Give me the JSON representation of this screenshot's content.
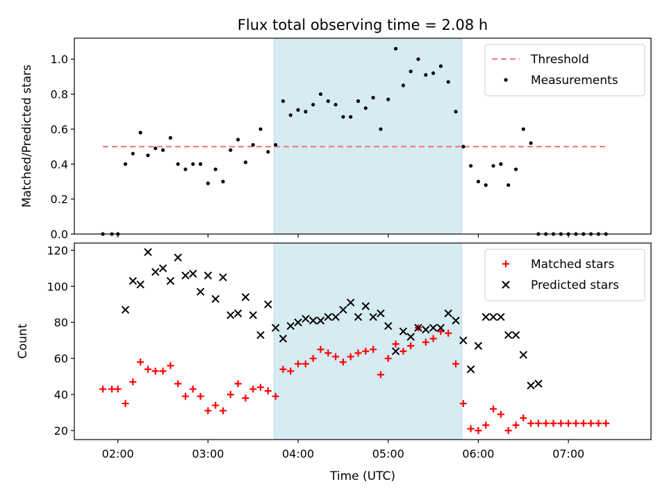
{
  "chart_data": {
    "title": "Flux total observing time = 2.08 h",
    "xlabel": "Time (UTC)",
    "x_ticks": [
      "02:00",
      "03:00",
      "04:00",
      "05:00",
      "06:00",
      "07:00"
    ],
    "x_tick_values": [
      "02:00",
      "03:00",
      "04:00",
      "05:00",
      "06:00",
      "07:00"
    ],
    "xlim": [
      "01:31",
      "07:55"
    ],
    "highlight_span": [
      "03:44",
      "05:49"
    ],
    "highlight_color": "#add8e6",
    "panels": [
      {
        "type": "scatter",
        "ylabel": "Matched/Predicted stars",
        "ylim": [
          0,
          1.12
        ],
        "y_ticks": [
          "0.0",
          "0.2",
          "0.4",
          "0.6",
          "0.8",
          "1.0"
        ],
        "y_tick_values": [
          0,
          0.2,
          0.4,
          0.6,
          0.8,
          1.0
        ],
        "legend_position": "top-right",
        "threshold": {
          "name": "Threshold",
          "value": 0.5,
          "x_range": [
            "01:50",
            "07:25"
          ],
          "color": "#f08080"
        },
        "series": [
          {
            "name": "Measurements",
            "color": "#000000",
            "marker": "dot",
            "points": [
              [
                "01:50",
                0.0
              ],
              [
                "01:56",
                0.0
              ],
              [
                "02:00",
                0.0
              ],
              [
                "02:05",
                0.4
              ],
              [
                "02:10",
                0.46
              ],
              [
                "02:15",
                0.58
              ],
              [
                "02:20",
                0.45
              ],
              [
                "02:25",
                0.49
              ],
              [
                "02:30",
                0.48
              ],
              [
                "02:35",
                0.55
              ],
              [
                "02:40",
                0.4
              ],
              [
                "02:45",
                0.37
              ],
              [
                "02:50",
                0.4
              ],
              [
                "02:55",
                0.4
              ],
              [
                "03:00",
                0.29
              ],
              [
                "03:05",
                0.37
              ],
              [
                "03:10",
                0.3
              ],
              [
                "03:15",
                0.48
              ],
              [
                "03:20",
                0.54
              ],
              [
                "03:25",
                0.41
              ],
              [
                "03:30",
                0.51
              ],
              [
                "03:35",
                0.6
              ],
              [
                "03:40",
                0.47
              ],
              [
                "03:45",
                0.51
              ],
              [
                "03:50",
                0.76
              ],
              [
                "03:55",
                0.68
              ],
              [
                "04:00",
                0.71
              ],
              [
                "04:05",
                0.7
              ],
              [
                "04:10",
                0.74
              ],
              [
                "04:15",
                0.8
              ],
              [
                "04:20",
                0.76
              ],
              [
                "04:25",
                0.74
              ],
              [
                "04:30",
                0.67
              ],
              [
                "04:35",
                0.67
              ],
              [
                "04:40",
                0.76
              ],
              [
                "04:45",
                0.72
              ],
              [
                "04:50",
                0.78
              ],
              [
                "04:55",
                0.6
              ],
              [
                "05:00",
                0.77
              ],
              [
                "05:05",
                1.06
              ],
              [
                "05:10",
                0.85
              ],
              [
                "05:15",
                0.93
              ],
              [
                "05:20",
                1.0
              ],
              [
                "05:25",
                0.91
              ],
              [
                "05:30",
                0.92
              ],
              [
                "05:35",
                0.96
              ],
              [
                "05:40",
                0.87
              ],
              [
                "05:45",
                0.7
              ],
              [
                "05:50",
                0.5
              ],
              [
                "05:55",
                0.39
              ],
              [
                "06:00",
                0.3
              ],
              [
                "06:05",
                0.28
              ],
              [
                "06:10",
                0.39
              ],
              [
                "06:15",
                0.4
              ],
              [
                "06:20",
                0.28
              ],
              [
                "06:25",
                0.37
              ],
              [
                "06:30",
                0.6
              ],
              [
                "06:35",
                0.52
              ],
              [
                "06:40",
                0.0
              ],
              [
                "06:45",
                0.0
              ],
              [
                "06:50",
                0.0
              ],
              [
                "06:55",
                0.0
              ],
              [
                "07:00",
                0.0
              ],
              [
                "07:05",
                0.0
              ],
              [
                "07:10",
                0.0
              ],
              [
                "07:15",
                0.0
              ],
              [
                "07:20",
                0.0
              ],
              [
                "07:25",
                0.0
              ]
            ]
          }
        ]
      },
      {
        "type": "scatter",
        "ylabel": "Count",
        "ylim": [
          15,
          124
        ],
        "y_ticks": [
          "20",
          "40",
          "60",
          "80",
          "100",
          "120"
        ],
        "y_tick_values": [
          20,
          40,
          60,
          80,
          100,
          120
        ],
        "legend_position": "top-right",
        "series": [
          {
            "name": "Matched stars",
            "color": "#ff0000",
            "marker": "plus",
            "points": [
              [
                "01:50",
                43
              ],
              [
                "01:56",
                43
              ],
              [
                "02:00",
                43
              ],
              [
                "02:05",
                35
              ],
              [
                "02:10",
                47
              ],
              [
                "02:15",
                58
              ],
              [
                "02:20",
                54
              ],
              [
                "02:25",
                53
              ],
              [
                "02:30",
                53
              ],
              [
                "02:35",
                56
              ],
              [
                "02:40",
                46
              ],
              [
                "02:45",
                39
              ],
              [
                "02:50",
                43
              ],
              [
                "02:55",
                39
              ],
              [
                "03:00",
                31
              ],
              [
                "03:05",
                34
              ],
              [
                "03:10",
                31
              ],
              [
                "03:15",
                40
              ],
              [
                "03:20",
                46
              ],
              [
                "03:25",
                38
              ],
              [
                "03:30",
                43
              ],
              [
                "03:35",
                44
              ],
              [
                "03:40",
                42
              ],
              [
                "03:45",
                39
              ],
              [
                "03:50",
                54
              ],
              [
                "03:55",
                53
              ],
              [
                "04:00",
                57
              ],
              [
                "04:05",
                57
              ],
              [
                "04:10",
                60
              ],
              [
                "04:15",
                65
              ],
              [
                "04:20",
                63
              ],
              [
                "04:25",
                61
              ],
              [
                "04:30",
                58
              ],
              [
                "04:35",
                61
              ],
              [
                "04:40",
                63
              ],
              [
                "04:45",
                64
              ],
              [
                "04:50",
                65
              ],
              [
                "04:55",
                51
              ],
              [
                "05:00",
                60
              ],
              [
                "05:05",
                68
              ],
              [
                "05:10",
                64
              ],
              [
                "05:15",
                67
              ],
              [
                "05:20",
                77
              ],
              [
                "05:25",
                69
              ],
              [
                "05:30",
                71
              ],
              [
                "05:35",
                75
              ],
              [
                "05:40",
                74
              ],
              [
                "05:45",
                57
              ],
              [
                "05:50",
                35
              ],
              [
                "05:55",
                21
              ],
              [
                "06:00",
                20
              ],
              [
                "06:05",
                23
              ],
              [
                "06:10",
                32
              ],
              [
                "06:15",
                29
              ],
              [
                "06:20",
                20
              ],
              [
                "06:25",
                23
              ],
              [
                "06:30",
                27
              ],
              [
                "06:35",
                24
              ],
              [
                "06:40",
                24
              ],
              [
                "06:45",
                24
              ],
              [
                "06:50",
                24
              ],
              [
                "06:55",
                24
              ],
              [
                "07:00",
                24
              ],
              [
                "07:05",
                24
              ],
              [
                "07:10",
                24
              ],
              [
                "07:15",
                24
              ],
              [
                "07:20",
                24
              ],
              [
                "07:25",
                24
              ]
            ]
          },
          {
            "name": "Predicted stars",
            "color": "#000000",
            "marker": "x",
            "points": [
              [
                "02:05",
                87
              ],
              [
                "02:10",
                103
              ],
              [
                "02:15",
                101
              ],
              [
                "02:20",
                119
              ],
              [
                "02:25",
                108
              ],
              [
                "02:30",
                110
              ],
              [
                "02:35",
                103
              ],
              [
                "02:40",
                116
              ],
              [
                "02:45",
                106
              ],
              [
                "02:50",
                107
              ],
              [
                "02:55",
                97
              ],
              [
                "03:00",
                106
              ],
              [
                "03:05",
                93
              ],
              [
                "03:10",
                105
              ],
              [
                "03:15",
                84
              ],
              [
                "03:20",
                85
              ],
              [
                "03:25",
                94
              ],
              [
                "03:30",
                84
              ],
              [
                "03:35",
                73
              ],
              [
                "03:40",
                90
              ],
              [
                "03:45",
                77
              ],
              [
                "03:50",
                71
              ],
              [
                "03:55",
                78
              ],
              [
                "04:00",
                80
              ],
              [
                "04:05",
                82
              ],
              [
                "04:10",
                81
              ],
              [
                "04:15",
                81
              ],
              [
                "04:20",
                83
              ],
              [
                "04:25",
                83
              ],
              [
                "04:30",
                87
              ],
              [
                "04:35",
                91
              ],
              [
                "04:40",
                83
              ],
              [
                "04:45",
                89
              ],
              [
                "04:50",
                83
              ],
              [
                "04:55",
                85
              ],
              [
                "05:00",
                78
              ],
              [
                "05:05",
                64
              ],
              [
                "05:10",
                75
              ],
              [
                "05:15",
                72
              ],
              [
                "05:20",
                77
              ],
              [
                "05:25",
                76
              ],
              [
                "05:30",
                77
              ],
              [
                "05:35",
                77
              ],
              [
                "05:40",
                85
              ],
              [
                "05:45",
                81
              ],
              [
                "05:50",
                70
              ],
              [
                "05:55",
                54
              ],
              [
                "06:00",
                67
              ],
              [
                "06:05",
                83
              ],
              [
                "06:10",
                83
              ],
              [
                "06:15",
                83
              ],
              [
                "06:20",
                73
              ],
              [
                "06:25",
                73
              ],
              [
                "06:30",
                62
              ],
              [
                "06:35",
                45
              ],
              [
                "06:40",
                46
              ]
            ]
          }
        ]
      }
    ]
  }
}
